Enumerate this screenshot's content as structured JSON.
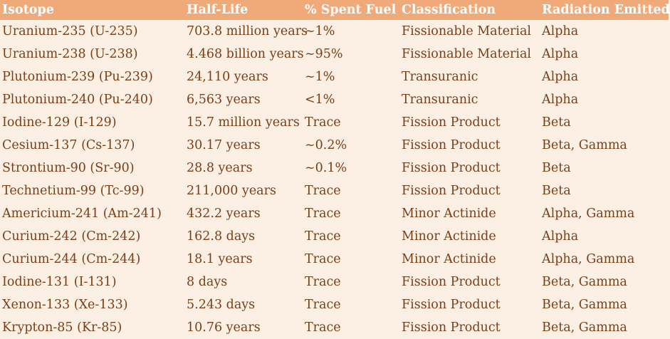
{
  "colors": {
    "header_background": "#f0a978",
    "header_text": "#ffffff",
    "body_background": "#fcefe3",
    "body_text": "#7a3f16"
  },
  "table": {
    "headers": [
      "Isotope",
      "Half-Life",
      "% Spent Fuel",
      "Classification",
      "Radiation Emitted"
    ],
    "rows": [
      [
        "Uranium-235 (U-235)",
        "703.8 million years",
        "~1%",
        "Fissionable Material",
        "Alpha"
      ],
      [
        "Uranium-238 (U-238)",
        "4.468 billion years",
        "~95%",
        "Fissionable Material",
        "Alpha"
      ],
      [
        "Plutonium-239 (Pu-239)",
        "24,110 years",
        "~1%",
        "Transuranic",
        "Alpha"
      ],
      [
        "Plutonium-240 (Pu-240)",
        "6,563 years",
        "<1%",
        "Transuranic",
        "Alpha"
      ],
      [
        "Iodine-129 (I-129)",
        "15.7 million years",
        "Trace",
        "Fission Product",
        "Beta"
      ],
      [
        "Cesium-137 (Cs-137)",
        "30.17 years",
        "~0.2%",
        "Fission Product",
        "Beta, Gamma"
      ],
      [
        "Strontium-90 (Sr-90)",
        "28.8 years",
        "~0.1%",
        "Fission Product",
        "Beta"
      ],
      [
        "Technetium-99 (Tc-99)",
        "211,000 years",
        "Trace",
        "Fission Product",
        "Beta"
      ],
      [
        "Americium-241 (Am-241)",
        "432.2 years",
        "Trace",
        "Minor Actinide",
        "Alpha, Gamma"
      ],
      [
        "Curium-242 (Cm-242)",
        "162.8 days",
        "Trace",
        "Minor Actinide",
        "Alpha"
      ],
      [
        "Curium-244 (Cm-244)",
        "18.1 years",
        "Trace",
        "Minor Actinide",
        "Alpha, Gamma"
      ],
      [
        "Iodine-131 (I-131)",
        "8 days",
        "Trace",
        "Fission Product",
        "Beta, Gamma"
      ],
      [
        "Xenon-133 (Xe-133)",
        "5.243 days",
        "Trace",
        "Fission Product",
        "Beta, Gamma"
      ],
      [
        "Krypton-85 (Kr-85)",
        "10.76 years",
        "Trace",
        "Fission Product",
        "Beta, Gamma"
      ]
    ]
  }
}
